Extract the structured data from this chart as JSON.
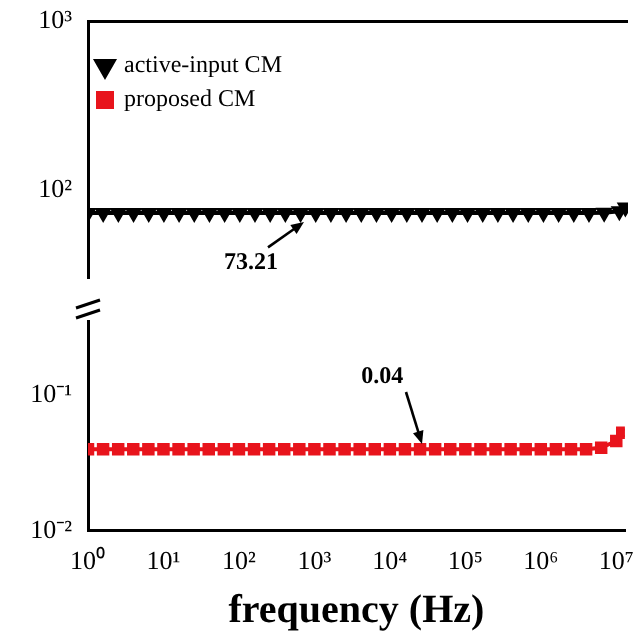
{
  "chart_data": [
    {
      "type": "line",
      "x": [
        1,
        1.585,
        2.512,
        3.981,
        6.31,
        10,
        15.85,
        25.12,
        39.81,
        63.1,
        100,
        158.5,
        251.2,
        398.1,
        631,
        1000,
        1585,
        2512,
        3981,
        6310,
        10000,
        15850,
        25120,
        39810,
        63100,
        100000,
        158500,
        251200,
        398100,
        631000,
        1000000,
        1585000,
        2512000,
        3981000,
        6310000,
        10000000,
        12000000
      ],
      "series": [
        {
          "name": "active-input CM",
          "color": "#000000",
          "marker": "triangle",
          "values": [
            73.21,
            73.21,
            73.21,
            73.21,
            73.21,
            73.21,
            73.21,
            73.21,
            73.21,
            73.21,
            73.21,
            73.21,
            73.21,
            73.21,
            73.21,
            73.21,
            73.21,
            73.21,
            73.21,
            73.21,
            73.21,
            73.21,
            73.21,
            73.21,
            73.21,
            73.21,
            73.21,
            73.21,
            73.21,
            73.21,
            73.21,
            73.21,
            73.21,
            73.21,
            73.6,
            75,
            79
          ]
        },
        {
          "name": "proposed CM",
          "color": "#e8141c",
          "marker": "square",
          "values": [
            null,
            null,
            null,
            null,
            null,
            null,
            null,
            null,
            null,
            null,
            null,
            null,
            null,
            null,
            null,
            null,
            null,
            null,
            null,
            null,
            null,
            null,
            null,
            null,
            null,
            null,
            null,
            null,
            null,
            null,
            null,
            null,
            null,
            null,
            null,
            null,
            null
          ]
        }
      ],
      "log": "xy",
      "xlim": [
        1,
        13000000
      ],
      "ylim": [
        30,
        1000
      ],
      "yticks": [
        {
          "value": 100,
          "label": "10²"
        },
        {
          "value": 1000,
          "label": "10³"
        }
      ],
      "tick_labels": "y",
      "legend": "top left",
      "annotations": [
        {
          "text": "73.21",
          "x": 700,
          "y": 73.21
        }
      ]
    },
    {
      "type": "line",
      "x": [
        1,
        1.585,
        2.512,
        3.981,
        6.31,
        10,
        15.85,
        25.12,
        39.81,
        63.1,
        100,
        158.5,
        251.2,
        398.1,
        631,
        1000,
        1585,
        2512,
        3981,
        6310,
        10000,
        15850,
        25120,
        39810,
        63100,
        100000,
        158500,
        251200,
        398100,
        631000,
        1000000,
        1585000,
        2512000,
        3981000,
        6310000,
        10000000,
        12000000
      ],
      "series": [
        {
          "color": "#e8141c",
          "marker": "square",
          "values": [
            0.04,
            0.04,
            0.04,
            0.04,
            0.04,
            0.04,
            0.04,
            0.04,
            0.04,
            0.04,
            0.04,
            0.04,
            0.04,
            0.04,
            0.04,
            0.04,
            0.04,
            0.04,
            0.04,
            0.04,
            0.04,
            0.04,
            0.04,
            0.04,
            0.04,
            0.04,
            0.04,
            0.04,
            0.04,
            0.04,
            0.04,
            0.04,
            0.04,
            0.04,
            0.041,
            0.046,
            0.053
          ]
        }
      ],
      "log": "xy",
      "xlim": [
        1,
        13000000
      ],
      "ylim": [
        0.01,
        0.35
      ],
      "xticks": [
        {
          "value": 1,
          "label": "10⁰"
        },
        {
          "value": 10,
          "label": "10¹"
        },
        {
          "value": 100,
          "label": "10²"
        },
        {
          "value": 1000,
          "label": "10³"
        },
        {
          "value": 10000,
          "label": "10⁴"
        },
        {
          "value": 100000,
          "label": "10⁵"
        },
        {
          "value": 1000000,
          "label": "10⁶"
        },
        {
          "value": 10000000,
          "label": "10⁷"
        }
      ],
      "yticks": [
        {
          "value": 0.01,
          "label": "10⁻²"
        },
        {
          "value": 0.1,
          "label": "10⁻¹"
        }
      ],
      "xlabel": "frequency (Hz)",
      "annotations": [
        {
          "text": "0.04",
          "x": 26000,
          "y": 0.04
        }
      ]
    }
  ]
}
